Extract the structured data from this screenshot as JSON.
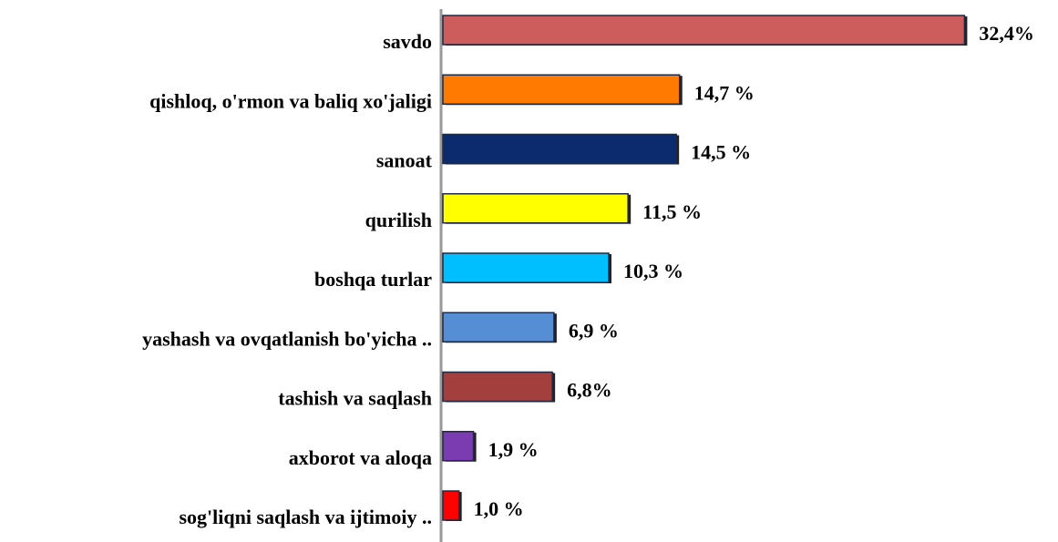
{
  "chart_data": {
    "type": "barh",
    "categories": [
      "savdo",
      "qishloq, o'rmon va baliq xo'jaligi",
      "sanoat",
      "qurilish",
      "boshqa turlar",
      "yashash va ovqatlanish bo'yicha ..",
      "tashish va saqlash",
      "axborot va aloqa",
      "sog'liqni saqlash va ijtimoiy .."
    ],
    "values": [
      32.4,
      14.7,
      14.5,
      11.5,
      10.3,
      6.9,
      6.8,
      1.9,
      1.0
    ],
    "value_labels": [
      "32,4%",
      "14,7 %",
      "14,5 %",
      "11,5 %",
      "10,3 %",
      "6,9 %",
      "6,8%",
      "1,9 %",
      "1,0 %"
    ],
    "colors": [
      "#cd5c5c",
      "#ff7a00",
      "#0c2a6e",
      "#ffff00",
      "#00bfff",
      "#558ed5",
      "#a33f3c",
      "#7a3cb0",
      "#ff0000"
    ],
    "xlim": [
      0,
      36
    ]
  }
}
